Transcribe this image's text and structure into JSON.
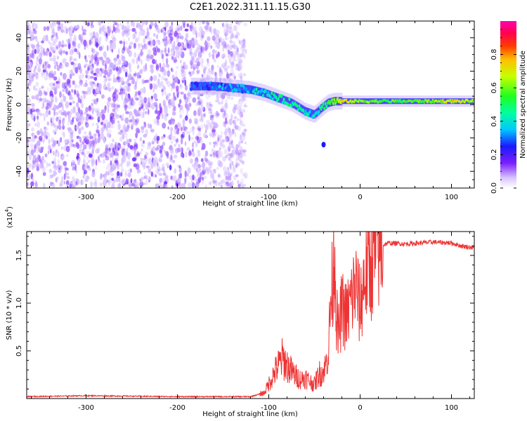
{
  "title": "C2E1.2022.311.11.15.G30",
  "chart_data": [
    {
      "type": "heatmap",
      "xlabel": "Height of straight line (km)",
      "ylabel": "Frequency (Hz)",
      "xlim": [
        -365,
        125
      ],
      "ylim": [
        -50,
        50
      ],
      "xticks": [
        -300,
        -200,
        -100,
        0,
        100
      ],
      "xtick_labels": [
        "-300",
        "-200",
        "-100",
        "0",
        "100"
      ],
      "yticks": [
        -40,
        -20,
        0,
        20,
        40
      ],
      "ytick_labels": [
        "-40",
        "-20",
        "0",
        "20",
        "40"
      ],
      "colorbar": {
        "label": "Normalized spectral amplitude",
        "range": [
          0,
          1
        ],
        "ticks": [
          0,
          0.2,
          0.4,
          0.6,
          0.8
        ],
        "tick_labels": [
          "0.0",
          "0.2",
          "0.4",
          "0.6",
          "0.8"
        ]
      },
      "noise_region": {
        "x_range": [
          -365,
          -125
        ],
        "y_range": [
          -50,
          50
        ],
        "amplitude": [
          0.05,
          0.2
        ]
      },
      "signal_track": {
        "x": [
          -185,
          -160,
          -140,
          -120,
          -105,
          -90,
          -75,
          -60,
          -50,
          -42,
          -35,
          -28,
          -20,
          -10,
          0,
          20,
          50,
          80,
          100,
          125
        ],
        "y": [
          11,
          11,
          10,
          9,
          7,
          4,
          1,
          -4,
          -6,
          -2,
          1,
          2,
          2,
          2,
          2,
          2,
          2,
          2,
          2,
          2
        ],
        "amplitude": [
          0.25,
          0.3,
          0.35,
          0.35,
          0.4,
          0.45,
          0.45,
          0.4,
          0.35,
          0.45,
          0.5,
          0.55,
          0.75,
          0.65,
          0.6,
          0.55,
          0.55,
          0.6,
          0.7,
          0.6
        ]
      },
      "isolated_blob": {
        "x": -40,
        "y": -24,
        "amplitude": 0.25
      }
    },
    {
      "type": "line",
      "xlabel": "Height of straight line (km)",
      "ylabel": "SNR (10 * v/v)",
      "scale_note": "(x10",
      "scale_exponent": "4",
      "scale_close": ")",
      "xlim": [
        -365,
        125
      ],
      "ylim": [
        0,
        17500
      ],
      "xticks": [
        -300,
        -200,
        -100,
        0,
        100
      ],
      "xtick_labels": [
        "-300",
        "-200",
        "-100",
        "0",
        "100"
      ],
      "yticks": [
        5000,
        10000,
        15000
      ],
      "ytick_labels": [
        "0.5",
        "1.0",
        "1.5"
      ],
      "color": "#ee3333",
      "series": [
        {
          "x": [
            -365,
            -300,
            -200,
            -120,
            -105,
            -95,
            -85,
            -78,
            -72,
            -65,
            -60,
            -55,
            -50,
            -45,
            -40,
            -35,
            -32,
            -30,
            -28,
            -26,
            -24,
            -20,
            -15,
            -10,
            -5,
            0,
            5,
            10,
            15,
            20,
            30,
            50,
            80,
            100,
            110,
            125
          ],
          "y": [
            200,
            300,
            200,
            200,
            600,
            2500,
            4200,
            3200,
            2500,
            2000,
            2200,
            1800,
            1500,
            2600,
            2800,
            4500,
            10500,
            12000,
            16500,
            9000,
            6500,
            9500,
            8500,
            10200,
            12000,
            9500,
            13000,
            14000,
            15000,
            15800,
            16300,
            16200,
            16400,
            16300,
            16000,
            15800
          ]
        }
      ]
    }
  ]
}
